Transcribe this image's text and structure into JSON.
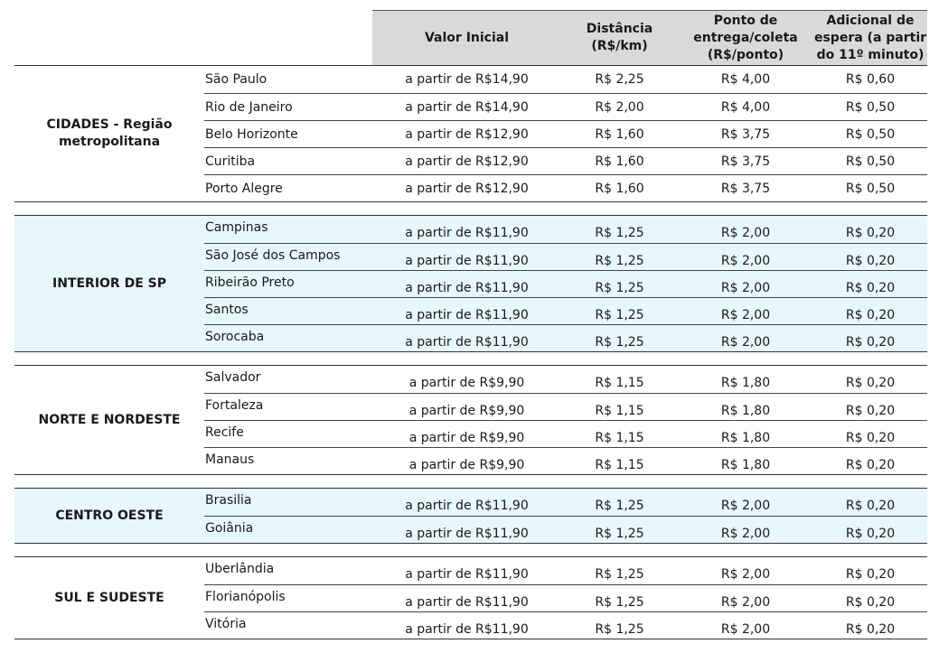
{
  "header": {
    "valor": "Valor Inicial",
    "distancia": "Distância\n(R$/km)",
    "ponto": "Ponto de\nentrega/coleta\n(R$/ponto)",
    "espera": "Adicional de\nespera (a partir\ndo 11º minuto)"
  },
  "groups": [
    {
      "label": "CIDADES - Região\nmetropolitana",
      "shaded": false,
      "rows": [
        {
          "city": "São Paulo",
          "valor": "a partir de R$14,90",
          "dist": "R$ 2,25",
          "ponto": "R$ 4,00",
          "espera": "R$ 0,60"
        },
        {
          "city": "Rio de Janeiro",
          "valor": "a partir de R$14,90",
          "dist": "R$ 2,00",
          "ponto": "R$ 4,00",
          "espera": "R$ 0,50"
        },
        {
          "city": "Belo Horizonte",
          "valor": "a partir de R$12,90",
          "dist": "R$ 1,60",
          "ponto": "R$ 3,75",
          "espera": "R$ 0,50"
        },
        {
          "city": "Curitiba",
          "valor": "a partir de R$12,90",
          "dist": "R$ 1,60",
          "ponto": "R$ 3,75",
          "espera": "R$ 0,50"
        },
        {
          "city": "Porto Alegre",
          "valor": "a partir de R$12,90",
          "dist": "R$ 1,60",
          "ponto": "R$ 3,75",
          "espera": "R$ 0,50"
        }
      ]
    },
    {
      "label": "INTERIOR DE SP",
      "shaded": true,
      "rows": [
        {
          "city": "Campinas",
          "valor": "a partir de R$11,90",
          "dist": "R$ 1,25",
          "ponto": "R$ 2,00",
          "espera": "R$ 0,20"
        },
        {
          "city": "São José dos Campos",
          "valor": "a partir de R$11,90",
          "dist": "R$ 1,25",
          "ponto": "R$ 2,00",
          "espera": "R$ 0,20"
        },
        {
          "city": "Ribeirão Preto",
          "valor": "a partir de R$11,90",
          "dist": "R$ 1,25",
          "ponto": "R$ 2,00",
          "espera": "R$ 0,20"
        },
        {
          "city": "Santos",
          "valor": "a partir de R$11,90",
          "dist": "R$ 1,25",
          "ponto": "R$ 2,00",
          "espera": "R$ 0,20"
        },
        {
          "city": "Sorocaba",
          "valor": "a partir de R$11,90",
          "dist": "R$ 1,25",
          "ponto": "R$ 2,00",
          "espera": "R$ 0,20"
        }
      ]
    },
    {
      "label": "NORTE E NORDESTE",
      "shaded": false,
      "rows": [
        {
          "city": "Salvador",
          "valor": "a partir de R$9,90",
          "dist": "R$ 1,15",
          "ponto": "R$ 1,80",
          "espera": "R$ 0,20"
        },
        {
          "city": "Fortaleza",
          "valor": "a partir de R$9,90",
          "dist": "R$ 1,15",
          "ponto": "R$ 1,80",
          "espera": "R$ 0,20"
        },
        {
          "city": "Recife",
          "valor": "a partir de R$9,90",
          "dist": "R$ 1,15",
          "ponto": "R$ 1,80",
          "espera": "R$ 0,20"
        },
        {
          "city": "Manaus",
          "valor": "a partir de R$9,90",
          "dist": "R$ 1,15",
          "ponto": "R$ 1,80",
          "espera": "R$ 0,20"
        }
      ]
    },
    {
      "label": "CENTRO OESTE",
      "shaded": true,
      "rows": [
        {
          "city": "Brasilia",
          "valor": "a partir de R$11,90",
          "dist": "R$ 1,25",
          "ponto": "R$ 2,00",
          "espera": "R$ 0,20"
        },
        {
          "city": "Goiânia",
          "valor": "a partir de R$11,90",
          "dist": "R$ 1,25",
          "ponto": "R$ 2,00",
          "espera": "R$ 0,20"
        }
      ]
    },
    {
      "label": "SUL E SUDESTE",
      "shaded": false,
      "rows": [
        {
          "city": "Uberlândia",
          "valor": "a partir de R$11,90",
          "dist": "R$ 1,25",
          "ponto": "R$ 2,00",
          "espera": "R$ 0,20"
        },
        {
          "city": "Florianópolis",
          "valor": "a partir de R$11,90",
          "dist": "R$ 1,25",
          "ponto": "R$ 2,00",
          "espera": "R$ 0,20"
        },
        {
          "city": "Vitória",
          "valor": "a partir de R$11,90",
          "dist": "R$ 1,25",
          "ponto": "R$ 2,00",
          "espera": "R$ 0,20"
        }
      ]
    }
  ]
}
